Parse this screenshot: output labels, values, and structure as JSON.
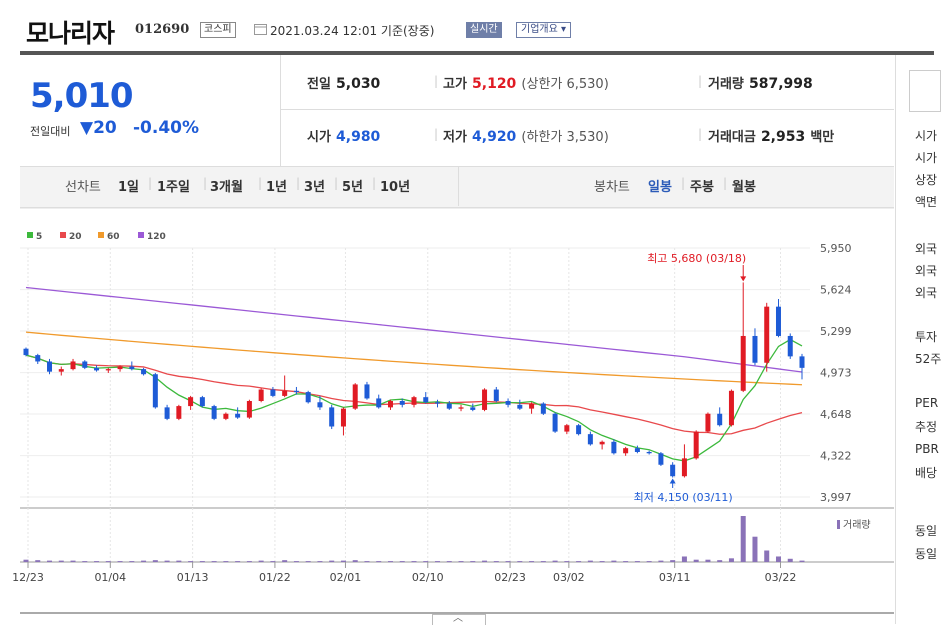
{
  "header": {
    "company": "모나리자",
    "code": "012690",
    "market": "코스피",
    "datetime": "2021.03.24 12:01 기준(장중)",
    "live_btn": "실시간",
    "info_btn": "기업개요"
  },
  "summary": {
    "price": "5,010",
    "change_label": "전일대비",
    "change_abs": "▼20",
    "change_pct": "-0.40%"
  },
  "quote": {
    "prev_label": "전일",
    "prev": "5,030",
    "high_label": "고가",
    "high": "5,120",
    "upper_limit": "(상한가 6,530)",
    "volume_label": "거래량",
    "volume": "587,998",
    "open_label": "시가",
    "open": "4,980",
    "low_label": "저가",
    "low": "4,920",
    "lower_limit": "(하한가 3,530)",
    "amount_label": "거래대금",
    "amount": "2,953",
    "amount_unit": "백만"
  },
  "tabs": {
    "line_label": "선차트",
    "line_items": [
      "1일",
      "1주일",
      "3개월",
      "1년",
      "3년",
      "5년",
      "10년"
    ],
    "candle_label": "봉차트",
    "candle_items": [
      "일봉",
      "주봉",
      "월봉"
    ]
  },
  "side_panel": [
    "시가",
    "시가",
    "상장",
    "액면",
    "외국",
    "외국",
    "외국",
    "투자",
    "52주",
    "PER",
    "추정",
    "PBR",
    "배당",
    "동일",
    "동일"
  ],
  "colors": {
    "up": "#e01b24",
    "down": "#1e5bd6",
    "ma5": "#3cb93c",
    "ma20": "#e8494c",
    "ma60": "#f09a2c",
    "ma120": "#9b59d6"
  },
  "chart_data": {
    "type": "candlestick",
    "legend": [
      "5",
      "20",
      "60",
      "120"
    ],
    "y_ticks": [
      3997,
      4322,
      4648,
      4973,
      5299,
      5624,
      5950
    ],
    "ylim": [
      3997,
      5950
    ],
    "x_tick_labels": [
      "12/23",
      "01/04",
      "01/13",
      "01/22",
      "02/01",
      "02/10",
      "02/23",
      "03/02",
      "03/11",
      "03/22"
    ],
    "annotations": {
      "max": "최고 5,680 (03/18)",
      "min": "최저 4,150 (03/11)"
    },
    "volume_label": "거래량",
    "candles": [
      [
        5160,
        5170,
        5100,
        5110
      ],
      [
        5110,
        5120,
        5040,
        5060
      ],
      [
        5060,
        5080,
        4960,
        4980
      ],
      [
        4980,
        5020,
        4950,
        5000
      ],
      [
        5000,
        5080,
        4990,
        5060
      ],
      [
        5060,
        5070,
        5000,
        5010
      ],
      [
        5010,
        5030,
        4980,
        4990
      ],
      [
        4990,
        5010,
        4970,
        5000
      ],
      [
        5000,
        5030,
        4980,
        5020
      ],
      [
        5020,
        5060,
        4990,
        5000
      ],
      [
        5000,
        5010,
        4950,
        4960
      ],
      [
        4960,
        4970,
        4690,
        4700
      ],
      [
        4700,
        4720,
        4600,
        4610
      ],
      [
        4610,
        4720,
        4600,
        4710
      ],
      [
        4710,
        4790,
        4680,
        4780
      ],
      [
        4780,
        4790,
        4700,
        4710
      ],
      [
        4710,
        4720,
        4600,
        4610
      ],
      [
        4610,
        4660,
        4600,
        4650
      ],
      [
        4650,
        4700,
        4610,
        4620
      ],
      [
        4620,
        4760,
        4610,
        4750
      ],
      [
        4750,
        4850,
        4740,
        4840
      ],
      [
        4840,
        4860,
        4780,
        4790
      ],
      [
        4790,
        4950,
        4780,
        4830
      ],
      [
        4830,
        4860,
        4800,
        4820
      ],
      [
        4820,
        4830,
        4730,
        4740
      ],
      [
        4740,
        4790,
        4680,
        4700
      ],
      [
        4700,
        4720,
        4530,
        4550
      ],
      [
        4550,
        4700,
        4480,
        4690
      ],
      [
        4690,
        4890,
        4680,
        4880
      ],
      [
        4880,
        4900,
        4760,
        4770
      ],
      [
        4770,
        4800,
        4690,
        4700
      ],
      [
        4700,
        4760,
        4680,
        4750
      ],
      [
        4750,
        4770,
        4700,
        4720
      ],
      [
        4720,
        4790,
        4700,
        4780
      ],
      [
        4780,
        4820,
        4730,
        4740
      ],
      [
        4740,
        4760,
        4700,
        4730
      ],
      [
        4730,
        4750,
        4680,
        4690
      ],
      [
        4690,
        4720,
        4670,
        4700
      ],
      [
        4700,
        4730,
        4670,
        4680
      ],
      [
        4680,
        4850,
        4670,
        4840
      ],
      [
        4840,
        4860,
        4740,
        4750
      ],
      [
        4750,
        4770,
        4700,
        4720
      ],
      [
        4720,
        4760,
        4680,
        4690
      ],
      [
        4690,
        4740,
        4650,
        4730
      ],
      [
        4730,
        4740,
        4640,
        4650
      ],
      [
        4650,
        4660,
        4500,
        4510
      ],
      [
        4510,
        4570,
        4490,
        4560
      ],
      [
        4560,
        4570,
        4480,
        4490
      ],
      [
        4490,
        4510,
        4400,
        4410
      ],
      [
        4410,
        4440,
        4370,
        4430
      ],
      [
        4430,
        4450,
        4330,
        4340
      ],
      [
        4340,
        4390,
        4320,
        4380
      ],
      [
        4380,
        4400,
        4340,
        4350
      ],
      [
        4350,
        4360,
        4330,
        4340
      ],
      [
        4340,
        4350,
        4240,
        4250
      ],
      [
        4250,
        4270,
        4150,
        4160
      ],
      [
        4160,
        4410,
        4150,
        4300
      ],
      [
        4300,
        4520,
        4290,
        4510
      ],
      [
        4510,
        4660,
        4500,
        4650
      ],
      [
        4650,
        4700,
        4550,
        4560
      ],
      [
        4560,
        4840,
        4550,
        4830
      ],
      [
        4830,
        5680,
        4820,
        5260
      ],
      [
        5260,
        5320,
        5030,
        5050
      ],
      [
        5050,
        5520,
        4980,
        5490
      ],
      [
        5490,
        5550,
        5250,
        5260
      ],
      [
        5260,
        5280,
        5080,
        5100
      ],
      [
        5100,
        5120,
        4920,
        5010
      ]
    ],
    "volumes": [
      5,
      4,
      3,
      3,
      3,
      2,
      2,
      2,
      2,
      2,
      3,
      4,
      3,
      3,
      2,
      2,
      2,
      2,
      2,
      2,
      3,
      2,
      4,
      2,
      2,
      2,
      3,
      3,
      4,
      2,
      2,
      2,
      2,
      2,
      2,
      2,
      2,
      2,
      2,
      3,
      2,
      2,
      2,
      2,
      2,
      3,
      2,
      2,
      3,
      2,
      3,
      2,
      2,
      2,
      3,
      4,
      12,
      5,
      5,
      4,
      8,
      100,
      55,
      25,
      12,
      7,
      3
    ]
  }
}
